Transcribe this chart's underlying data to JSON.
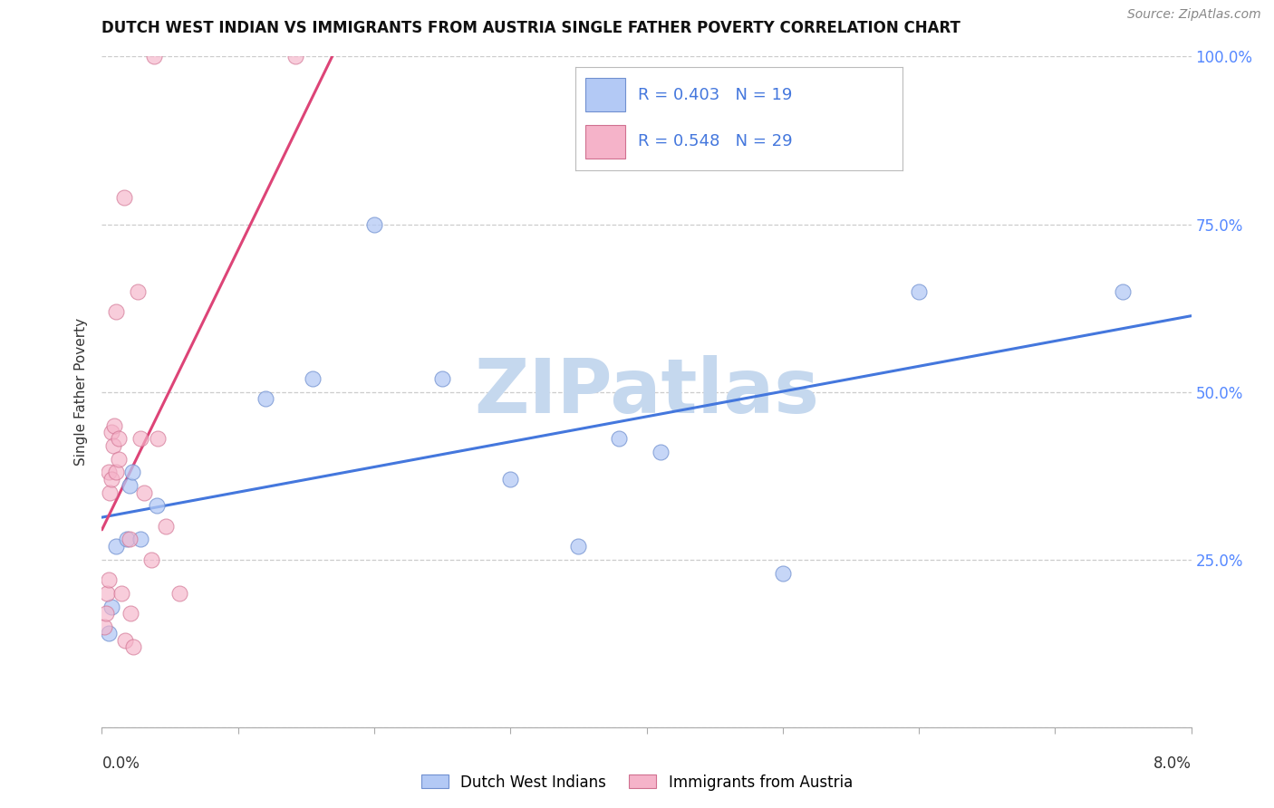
{
  "title": "DUTCH WEST INDIAN VS IMMIGRANTS FROM AUSTRIA SINGLE FATHER POVERTY CORRELATION CHART",
  "source": "Source: ZipAtlas.com",
  "ylabel": "Single Father Poverty",
  "r1_label": "R = 0.403",
  "n1_label": "N = 19",
  "r2_label": "R = 0.548",
  "n2_label": "N = 29",
  "label1": "Dutch West Indians",
  "label2": "Immigrants from Austria",
  "color1_face": "#b3c9f5",
  "color1_edge": "#7090d0",
  "color2_face": "#f5b3c9",
  "color2_edge": "#d07090",
  "line1_color": "#4477dd",
  "line2_color": "#dd4477",
  "legend_text_color": "#4477dd",
  "watermark_color": "#c5d8ee",
  "bg_color": "#ffffff",
  "grid_color": "#cccccc",
  "right_tick_color": "#5588ff",
  "xlim": [
    0.0,
    8.0
  ],
  "ylim": [
    0.0,
    100.0
  ],
  "blue_x": [
    0.05,
    0.07,
    0.1,
    0.18,
    0.2,
    0.22,
    0.28,
    0.4,
    1.2,
    1.55,
    2.0,
    2.5,
    3.0,
    3.5,
    3.8,
    4.1,
    5.0,
    6.0,
    7.5
  ],
  "blue_y": [
    14,
    18,
    27,
    28,
    36,
    38,
    28,
    33,
    49,
    52,
    75,
    52,
    37,
    27,
    43,
    41,
    23,
    65,
    65
  ],
  "pink_x": [
    0.02,
    0.03,
    0.04,
    0.05,
    0.05,
    0.06,
    0.07,
    0.07,
    0.08,
    0.09,
    0.1,
    0.1,
    0.12,
    0.12,
    0.14,
    0.16,
    0.17,
    0.2,
    0.21,
    0.23,
    0.26,
    0.28,
    0.31,
    0.36,
    0.38,
    0.41,
    0.47,
    0.57,
    1.42
  ],
  "pink_y": [
    15,
    17,
    20,
    22,
    38,
    35,
    37,
    44,
    42,
    45,
    38,
    62,
    40,
    43,
    20,
    79,
    13,
    28,
    17,
    12,
    65,
    43,
    35,
    25,
    100,
    43,
    30,
    20,
    100
  ]
}
